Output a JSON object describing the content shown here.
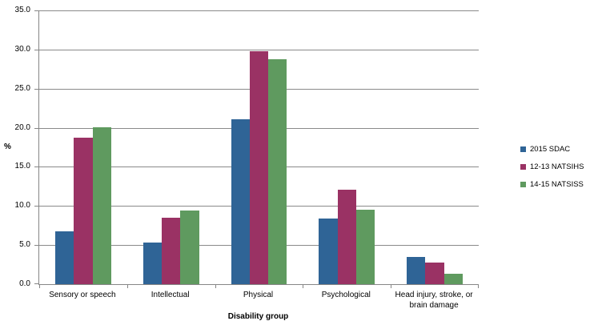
{
  "chart_data": {
    "type": "bar",
    "title": "",
    "categories": [
      "Sensory or speech",
      "Intellectual",
      "Physical",
      "Psychological",
      "Head injury, stroke, or brain damage"
    ],
    "series": [
      {
        "name": "2015 SDAC",
        "color": "#2F6496",
        "values": [
          6.8,
          5.3,
          21.1,
          8.4,
          3.5
        ]
      },
      {
        "name": "12-13 NATSIHS",
        "color": "#9A3264",
        "values": [
          18.7,
          8.5,
          29.8,
          12.1,
          2.8
        ]
      },
      {
        "name": "14-15 NATSISS",
        "color": "#5F9A5F",
        "values": [
          20.1,
          9.4,
          28.8,
          9.5,
          1.3
        ]
      }
    ],
    "xlabel": "Disability group",
    "ylabel": "%",
    "ylim": [
      0,
      35
    ],
    "y_tick_step": 5,
    "y_tick_labels": [
      "0.0",
      "5.0",
      "10.0",
      "15.0",
      "20.0",
      "25.0",
      "30.0",
      "35.0"
    ],
    "grid": true,
    "legend_position": "right"
  },
  "colors": {
    "axis": "#868686",
    "gridline": "#8a8a8a",
    "text": "#000000",
    "background": "#ffffff"
  }
}
